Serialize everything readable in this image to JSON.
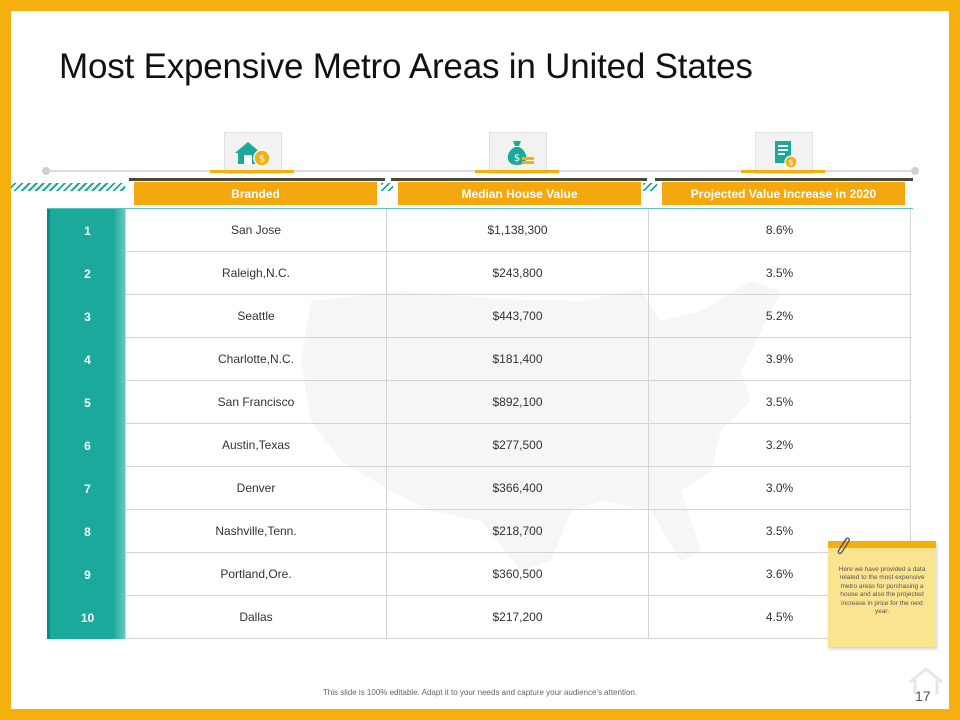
{
  "slide": {
    "title": "Most Expensive Metro Areas in United States",
    "footer": "This slide is 100% editable. Adapt it to your needs and capture your audience's attention.",
    "page_number": "17"
  },
  "icons": [
    "house-coin-icon",
    "money-bag-icon",
    "document-dollar-icon"
  ],
  "colors": {
    "frame": "#f5b00d",
    "header": "#f5a70e",
    "teal": "#1aa99a",
    "note": "#fbe48f"
  },
  "table": {
    "headers": [
      "Branded",
      "Median House Value",
      "Projected Value Increase in 2020"
    ],
    "rows": [
      {
        "rank": "1",
        "city": "San Jose",
        "value": "$1,138,300",
        "increase": "8.6%"
      },
      {
        "rank": "2",
        "city": "Raleigh,N.C.",
        "value": "$243,800",
        "increase": "3.5%"
      },
      {
        "rank": "3",
        "city": "Seattle",
        "value": "$443,700",
        "increase": "5.2%"
      },
      {
        "rank": "4",
        "city": "Charlotte,N.C.",
        "value": "$181,400",
        "increase": "3.9%"
      },
      {
        "rank": "5",
        "city": "San Francisco",
        "value": "$892,100",
        "increase": "3.5%"
      },
      {
        "rank": "6",
        "city": "Austin,Texas",
        "value": "$277,500",
        "increase": "3.2%"
      },
      {
        "rank": "7",
        "city": "Denver",
        "value": "$366,400",
        "increase": "3.0%"
      },
      {
        "rank": "8",
        "city": "Nashville,Tenn.",
        "value": "$218,700",
        "increase": "3.5%"
      },
      {
        "rank": "9",
        "city": "Portland,Ore.",
        "value": "$360,500",
        "increase": "3.6%"
      },
      {
        "rank": "10",
        "city": "Dallas",
        "value": "$217,200",
        "increase": "4.5%"
      }
    ]
  },
  "note": {
    "text": "Here we have provided a data related to the most expensive metro areas for purchasing a house and also the projected increase in price for the next year."
  }
}
